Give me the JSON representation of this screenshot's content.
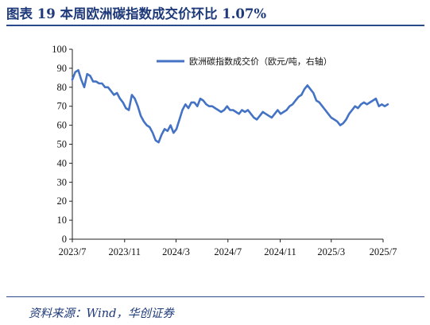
{
  "title": "图表 19   本周欧洲碳指数成交价环比 1.07%",
  "source": "资料来源：Wind，华创证券",
  "chart_data": {
    "type": "line",
    "title": "图表 19   本周欧洲碳指数成交价环比 1.07%",
    "xlabel": "",
    "ylabel": "",
    "ylim": [
      0,
      100
    ],
    "yticks": [
      0,
      10,
      20,
      30,
      40,
      50,
      60,
      70,
      80,
      90,
      100
    ],
    "xticks": [
      "2023/7",
      "2023/11",
      "2024/3",
      "2024/7",
      "2024/11",
      "2025/3",
      "2025/7"
    ],
    "grid": false,
    "legend_position": "top-right",
    "series": [
      {
        "name": "欧洲碳指数成交价（欧元/吨，右轴）",
        "color": "#4472C4",
        "x": [
          "2023/7/1",
          "2023/7/8",
          "2023/7/15",
          "2023/7/22",
          "2023/7/29",
          "2023/8/5",
          "2023/8/12",
          "2023/8/19",
          "2023/8/26",
          "2023/9/2",
          "2023/9/9",
          "2023/9/16",
          "2023/9/23",
          "2023/9/30",
          "2023/10/7",
          "2023/10/14",
          "2023/10/21",
          "2023/10/28",
          "2023/11/4",
          "2023/11/11",
          "2023/11/18",
          "2023/11/25",
          "2023/12/2",
          "2023/12/9",
          "2023/12/16",
          "2023/12/23",
          "2023/12/30",
          "2024/1/6",
          "2024/1/13",
          "2024/1/20",
          "2024/1/27",
          "2024/2/3",
          "2024/2/10",
          "2024/2/17",
          "2024/2/24",
          "2024/3/2",
          "2024/3/9",
          "2024/3/16",
          "2024/3/23",
          "2024/3/30",
          "2024/4/6",
          "2024/4/13",
          "2024/4/20",
          "2024/4/27",
          "2024/5/4",
          "2024/5/11",
          "2024/5/18",
          "2024/5/25",
          "2024/6/1",
          "2024/6/8",
          "2024/6/15",
          "2024/6/22",
          "2024/6/29",
          "2024/7/6",
          "2024/7/13",
          "2024/7/20",
          "2024/7/27",
          "2024/8/3",
          "2024/8/10",
          "2024/8/17",
          "2024/8/24",
          "2024/8/31",
          "2024/9/7",
          "2024/9/14",
          "2024/9/21",
          "2024/9/28",
          "2024/10/5",
          "2024/10/12",
          "2024/10/19",
          "2024/10/26",
          "2024/11/2",
          "2024/11/9",
          "2024/11/16",
          "2024/11/23",
          "2024/11/30",
          "2024/12/7",
          "2024/12/14",
          "2024/12/21",
          "2024/12/28",
          "2025/1/4",
          "2025/1/11",
          "2025/1/18",
          "2025/1/25",
          "2025/2/1",
          "2025/2/8",
          "2025/2/15",
          "2025/2/22",
          "2025/3/1",
          "2025/3/8",
          "2025/3/15",
          "2025/3/22",
          "2025/3/29",
          "2025/4/5",
          "2025/4/12",
          "2025/4/19",
          "2025/4/26",
          "2025/5/3",
          "2025/5/10",
          "2025/5/17",
          "2025/5/24",
          "2025/5/31",
          "2025/6/7",
          "2025/6/14",
          "2025/6/21",
          "2025/6/28",
          "2025/7/5",
          "2025/7/12"
        ],
        "values": [
          84,
          88,
          89,
          84,
          80,
          87,
          86,
          83,
          83,
          82,
          82,
          80,
          80,
          78,
          76,
          77,
          74,
          72,
          69,
          68,
          76,
          74,
          70,
          65,
          62,
          60,
          59,
          56,
          52,
          51,
          55,
          58,
          57,
          60,
          56,
          58,
          63,
          68,
          71,
          69,
          72,
          72,
          70,
          74,
          73,
          71,
          70,
          70,
          69,
          68,
          67,
          68,
          70,
          68,
          68,
          67,
          66,
          68,
          67,
          68,
          66,
          64,
          63,
          65,
          67,
          66,
          65,
          64,
          66,
          68,
          66,
          67,
          68,
          70,
          71,
          73,
          75,
          76,
          79,
          81,
          79,
          77,
          73,
          72,
          70,
          68,
          66,
          64,
          63,
          62,
          60,
          61,
          63,
          66,
          68,
          70,
          69,
          71,
          72,
          71,
          72,
          73,
          74,
          70,
          71,
          70,
          71
        ]
      }
    ]
  }
}
